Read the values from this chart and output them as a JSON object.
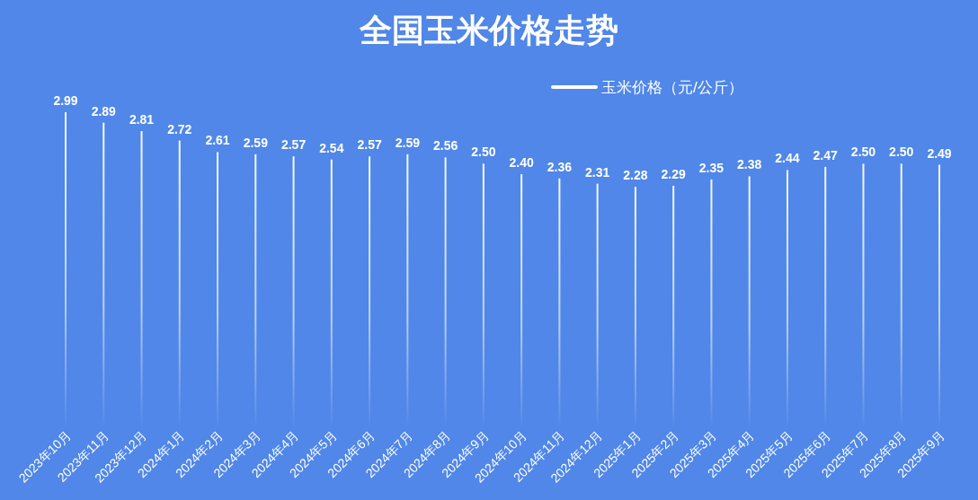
{
  "chart_data": {
    "type": "bar",
    "title": "全国玉米价格走势",
    "categories": [
      "2023年10月",
      "2023年11月",
      "2023年12月",
      "2024年1月",
      "2024年2月",
      "2024年3月",
      "2024年4月",
      "2024年5月",
      "2024年6月",
      "2024年7月",
      "2024年8月",
      "2024年9月",
      "2024年10月",
      "2024年11月",
      "2024年12月",
      "2025年1月",
      "2025年2月",
      "2025年3月",
      "2025年4月",
      "2025年5月",
      "2025年6月",
      "2025年7月",
      "2025年8月",
      "2025年9月"
    ],
    "series": [
      {
        "name": "玉米价格（元/公斤）",
        "color": "#ffffff",
        "values": [
          2.99,
          2.89,
          2.81,
          2.72,
          2.61,
          2.59,
          2.57,
          2.54,
          2.57,
          2.59,
          2.56,
          2.5,
          2.4,
          2.36,
          2.31,
          2.28,
          2.29,
          2.35,
          2.38,
          2.44,
          2.47,
          2.5,
          2.5,
          2.49
        ],
        "value_labels": [
          "2.99",
          "2.89",
          "2.81",
          "2.72",
          "2.61",
          "2.59",
          "2.57",
          "2.54",
          "2.57",
          "2.59",
          "2.56",
          "2.50",
          "2.40",
          "2.36",
          "2.31",
          "2.28",
          "2.29",
          "2.35",
          "2.38",
          "2.44",
          "2.47",
          "2.50",
          "2.50",
          "2.49"
        ]
      }
    ],
    "legend": "top right"
  }
}
